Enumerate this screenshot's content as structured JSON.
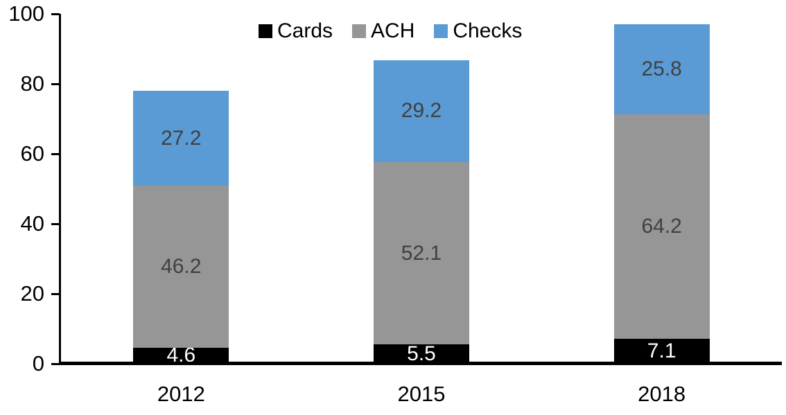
{
  "chart_data": {
    "type": "bar",
    "stacked": true,
    "categories": [
      "2012",
      "2015",
      "2018"
    ],
    "series": [
      {
        "name": "Cards",
        "color": "#000000",
        "label_color": "#ffffff",
        "values": [
          4.6,
          5.5,
          7.1
        ]
      },
      {
        "name": "ACH",
        "color": "#969696",
        "label_color": "#404040",
        "values": [
          46.2,
          52.1,
          64.2
        ]
      },
      {
        "name": "Checks",
        "color": "#5b9bd5",
        "label_color": "#404040",
        "values": [
          27.2,
          29.2,
          25.8
        ]
      }
    ],
    "ylim": [
      0,
      100
    ],
    "yticks": [
      0,
      20,
      40,
      60,
      80,
      100
    ],
    "grid": false,
    "legend_position": "top",
    "axis_color": "#000000",
    "background_color": "#ffffff",
    "value_label_decimals": 1
  }
}
